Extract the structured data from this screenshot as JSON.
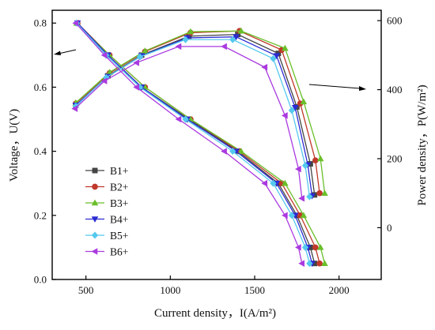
{
  "chart_data": {
    "type": "line",
    "xlabel": "Current density，I(A/m²)",
    "ylabel_left": "Voltage，U(V)",
    "ylabel_right": "Power density，P(W/m²)",
    "xlim": [
      300,
      2250
    ],
    "ylim_left": [
      0,
      0.84
    ],
    "ylim_right": [
      -150,
      630
    ],
    "x_ticks": [
      500,
      1000,
      1500,
      2000
    ],
    "y_left_ticks": [
      0.0,
      0.2,
      0.4,
      0.6,
      0.8
    ],
    "y_right_ticks": [
      0,
      200,
      400,
      600
    ],
    "grid": false,
    "legend_position": "center-left",
    "series": [
      {
        "name": "B1+",
        "color": "#444444",
        "marker": "square",
        "voltage_curve": [
          [
            450,
            0.8
          ],
          [
            630,
            0.7
          ],
          [
            830,
            0.6
          ],
          [
            1110,
            0.5
          ],
          [
            1400,
            0.4
          ],
          [
            1640,
            0.3
          ],
          [
            1750,
            0.2
          ],
          [
            1830,
            0.1
          ],
          [
            1855,
            0.05
          ]
        ],
        "power_curve": [
          [
            440,
            355
          ],
          [
            630,
            440
          ],
          [
            830,
            500
          ],
          [
            1110,
            555
          ],
          [
            1400,
            560
          ],
          [
            1640,
            505
          ],
          [
            1750,
            350
          ],
          [
            1830,
            185
          ],
          [
            1855,
            95
          ]
        ]
      },
      {
        "name": "B2+",
        "color": "#c0392b",
        "marker": "circle",
        "voltage_curve": [
          [
            450,
            0.8
          ],
          [
            640,
            0.7
          ],
          [
            850,
            0.6
          ],
          [
            1120,
            0.5
          ],
          [
            1410,
            0.4
          ],
          [
            1660,
            0.3
          ],
          [
            1770,
            0.2
          ],
          [
            1860,
            0.1
          ],
          [
            1885,
            0.05
          ]
        ],
        "power_curve": [
          [
            440,
            360
          ],
          [
            640,
            448
          ],
          [
            850,
            510
          ],
          [
            1120,
            565
          ],
          [
            1410,
            570
          ],
          [
            1660,
            515
          ],
          [
            1770,
            360
          ],
          [
            1860,
            195
          ],
          [
            1885,
            100
          ]
        ]
      },
      {
        "name": "B3+",
        "color": "#6abf2a",
        "marker": "triangle-up",
        "voltage_curve": [
          [
            445,
            0.8
          ],
          [
            640,
            0.7
          ],
          [
            850,
            0.6
          ],
          [
            1120,
            0.5
          ],
          [
            1420,
            0.4
          ],
          [
            1680,
            0.3
          ],
          [
            1790,
            0.2
          ],
          [
            1890,
            0.1
          ],
          [
            1915,
            0.05
          ]
        ],
        "power_curve": [
          [
            440,
            362
          ],
          [
            640,
            450
          ],
          [
            850,
            512
          ],
          [
            1120,
            568
          ],
          [
            1420,
            570
          ],
          [
            1680,
            520
          ],
          [
            1790,
            365
          ],
          [
            1890,
            200
          ],
          [
            1915,
            100
          ]
        ]
      },
      {
        "name": "B4+",
        "color": "#2b2bd4",
        "marker": "triangle-down",
        "voltage_curve": [
          [
            450,
            0.8
          ],
          [
            630,
            0.7
          ],
          [
            830,
            0.6
          ],
          [
            1100,
            0.5
          ],
          [
            1390,
            0.4
          ],
          [
            1630,
            0.3
          ],
          [
            1740,
            0.2
          ],
          [
            1815,
            0.1
          ],
          [
            1840,
            0.05
          ]
        ],
        "power_curve": [
          [
            440,
            355
          ],
          [
            630,
            438
          ],
          [
            830,
            498
          ],
          [
            1100,
            550
          ],
          [
            1390,
            553
          ],
          [
            1630,
            498
          ],
          [
            1740,
            348
          ],
          [
            1815,
            182
          ],
          [
            1840,
            92
          ]
        ]
      },
      {
        "name": "B5+",
        "color": "#55c8ee",
        "marker": "diamond",
        "voltage_curve": [
          [
            445,
            0.8
          ],
          [
            620,
            0.7
          ],
          [
            820,
            0.6
          ],
          [
            1090,
            0.5
          ],
          [
            1370,
            0.4
          ],
          [
            1610,
            0.3
          ],
          [
            1720,
            0.2
          ],
          [
            1800,
            0.1
          ],
          [
            1825,
            0.05
          ]
        ],
        "power_curve": [
          [
            440,
            352
          ],
          [
            620,
            435
          ],
          [
            820,
            495
          ],
          [
            1090,
            545
          ],
          [
            1370,
            545
          ],
          [
            1610,
            490
          ],
          [
            1720,
            340
          ],
          [
            1800,
            180
          ],
          [
            1825,
            90
          ]
        ]
      },
      {
        "name": "B6+",
        "color": "#aa3ae0",
        "marker": "triangle-left",
        "voltage_curve": [
          [
            440,
            0.8
          ],
          [
            610,
            0.7
          ],
          [
            800,
            0.6
          ],
          [
            1050,
            0.5
          ],
          [
            1320,
            0.4
          ],
          [
            1560,
            0.3
          ],
          [
            1680,
            0.2
          ],
          [
            1760,
            0.1
          ],
          [
            1780,
            0.05
          ]
        ],
        "power_curve": [
          [
            435,
            345
          ],
          [
            610,
            425
          ],
          [
            800,
            478
          ],
          [
            1050,
            525
          ],
          [
            1320,
            525
          ],
          [
            1560,
            465
          ],
          [
            1680,
            325
          ],
          [
            1760,
            170
          ],
          [
            1780,
            85
          ]
        ]
      }
    ]
  }
}
